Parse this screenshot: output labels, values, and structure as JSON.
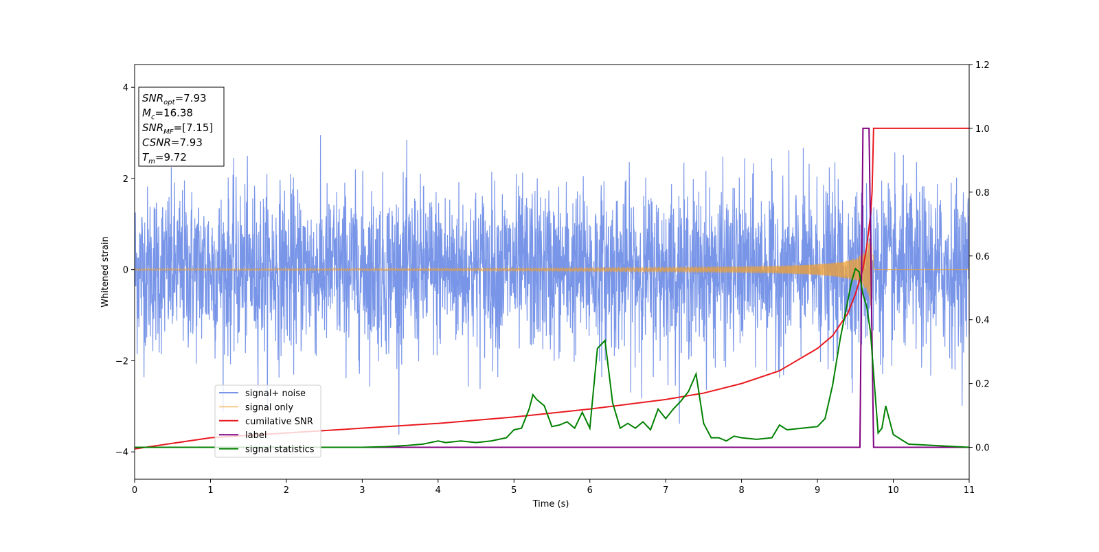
{
  "chart_data": {
    "type": "line",
    "xlabel": "Time (s)",
    "ylabel": "Whitened strain",
    "xlim": [
      0,
      11
    ],
    "ylim_left": [
      -4.6,
      4.5
    ],
    "ylim_right": [
      -0.1,
      1.2
    ],
    "x_ticks": [
      0,
      1,
      2,
      3,
      4,
      5,
      6,
      7,
      8,
      9,
      10,
      11
    ],
    "y_left_ticks": [
      -4,
      -2,
      0,
      2,
      4
    ],
    "y_right_ticks": [
      0.0,
      0.2,
      0.4,
      0.6,
      0.8,
      1.0,
      1.2
    ],
    "grid": false,
    "legend_placement": "lower-left",
    "annotation": {
      "lines": [
        {
          "base": "SNR",
          "sub": "opt",
          "value": "=7.93"
        },
        {
          "base": "M",
          "sub": "c",
          "value": "=16.38"
        },
        {
          "base": "SNR",
          "sub": "MF",
          "value": "=[7.15]"
        },
        {
          "base": "CSNR",
          "sub": "",
          "value": "=7.93"
        },
        {
          "base": "T",
          "sub": "m",
          "value": "=9.72"
        }
      ]
    },
    "series": [
      {
        "name": "signal+ noise",
        "axis": "left",
        "color": "#7895e8",
        "description_values": {
          "mean": 0,
          "std": 0.9,
          "min": -4.15,
          "max": 4.05
        }
      },
      {
        "name": "signal only",
        "axis": "left",
        "color": "#f0a030",
        "chirp": {
          "start_amplitude": 0.02,
          "peak_time": 9.72,
          "peak_amplitude": 1.0
        }
      },
      {
        "name": "cumilative SNR",
        "axis": "right",
        "color": "#e8191f",
        "x": [
          0,
          1,
          2,
          3,
          4,
          5,
          6,
          7,
          7.5,
          8,
          8.5,
          9,
          9.2,
          9.4,
          9.5,
          9.6,
          9.65,
          9.7,
          9.72,
          9.74,
          11
        ],
        "y": [
          -0.005,
          0.03,
          0.045,
          0.06,
          0.075,
          0.095,
          0.12,
          0.15,
          0.17,
          0.2,
          0.24,
          0.31,
          0.35,
          0.42,
          0.48,
          0.56,
          0.63,
          0.73,
          0.8,
          1.0,
          1.0
        ]
      },
      {
        "name": "label",
        "axis": "right",
        "color": "#800080",
        "x": [
          0,
          9.56,
          9.6,
          9.68,
          9.74,
          11
        ],
        "y": [
          0,
          0,
          1,
          1,
          0,
          0
        ]
      },
      {
        "name": "signal statistics",
        "axis": "right",
        "color": "#008000",
        "x": [
          0,
          0.5,
          1,
          1.5,
          2,
          2.5,
          3,
          3.3,
          3.6,
          3.8,
          3.9,
          4,
          4.1,
          4.3,
          4.5,
          4.7,
          4.9,
          5,
          5.1,
          5.2,
          5.25,
          5.3,
          5.4,
          5.5,
          5.6,
          5.7,
          5.8,
          5.9,
          6,
          6.1,
          6.2,
          6.3,
          6.4,
          6.5,
          6.6,
          6.7,
          6.8,
          6.9,
          7,
          7.1,
          7.2,
          7.3,
          7.4,
          7.5,
          7.6,
          7.7,
          7.8,
          7.9,
          8,
          8.2,
          8.4,
          8.5,
          8.6,
          8.8,
          9,
          9.1,
          9.2,
          9.3,
          9.35,
          9.4,
          9.45,
          9.5,
          9.55,
          9.6,
          9.65,
          9.7,
          9.75,
          9.8,
          9.85,
          9.9,
          10,
          10.2,
          11
        ],
        "y": [
          0,
          0,
          0,
          0,
          0,
          0,
          0,
          0.002,
          0.006,
          0.01,
          0.015,
          0.02,
          0.015,
          0.02,
          0.015,
          0.02,
          0.03,
          0.055,
          0.06,
          0.12,
          0.165,
          0.15,
          0.13,
          0.065,
          0.07,
          0.08,
          0.06,
          0.11,
          0.06,
          0.31,
          0.335,
          0.14,
          0.06,
          0.075,
          0.06,
          0.08,
          0.055,
          0.12,
          0.09,
          0.12,
          0.145,
          0.175,
          0.23,
          0.075,
          0.03,
          0.03,
          0.02,
          0.035,
          0.03,
          0.025,
          0.03,
          0.07,
          0.055,
          0.06,
          0.065,
          0.09,
          0.195,
          0.34,
          0.4,
          0.46,
          0.52,
          0.56,
          0.55,
          0.48,
          0.44,
          0.36,
          0.2,
          0.045,
          0.06,
          0.13,
          0.04,
          0.01,
          0
        ]
      }
    ]
  }
}
